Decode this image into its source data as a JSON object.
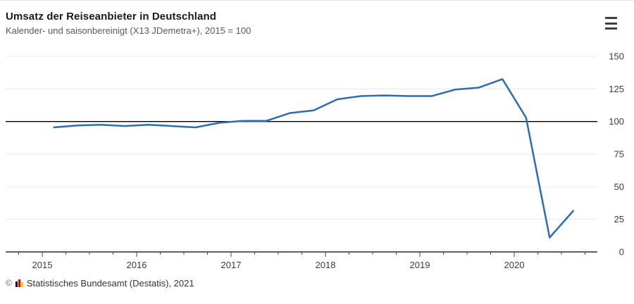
{
  "header": {
    "title": "Umsatz der Reiseanbieter in Deutschland",
    "subtitle": "Kalender- und saisonbereinigt (X13 JDemetra+), 2015 = 100",
    "menu_icon": "hamburger-icon"
  },
  "footer": {
    "copyright": "©",
    "logo_icon": "destatis-logo-icon",
    "source": "Statistisches Bundesamt (Destatis), 2021"
  },
  "chart_data": {
    "type": "line",
    "title": "Umsatz der Reiseanbieter in Deutschland",
    "subtitle": "Kalender- und saisonbereinigt (X13 JDemetra+), 2015 = 100",
    "x": [
      "2015-Q1",
      "2015-Q2",
      "2015-Q3",
      "2015-Q4",
      "2016-Q1",
      "2016-Q2",
      "2016-Q3",
      "2016-Q4",
      "2017-Q1",
      "2017-Q2",
      "2017-Q3",
      "2017-Q4",
      "2018-Q1",
      "2018-Q2",
      "2018-Q3",
      "2018-Q4",
      "2019-Q1",
      "2019-Q2",
      "2019-Q3",
      "2019-Q4",
      "2020-Q1",
      "2020-Q2",
      "2020-Q3"
    ],
    "values": [
      95.5,
      97,
      97.5,
      96.5,
      97.5,
      96.5,
      95.5,
      99,
      100.5,
      100.5,
      106.5,
      108.5,
      117,
      119.5,
      120,
      119.5,
      119.5,
      124.5,
      126,
      132.5,
      103,
      11,
      31.5
    ],
    "x_tick_labels": [
      "2015",
      "2016",
      "2017",
      "2018",
      "2019",
      "2020"
    ],
    "y_ticks": [
      0,
      25,
      50,
      75,
      100,
      125,
      150
    ],
    "ylim": [
      0,
      150
    ],
    "reference_line": 100,
    "y_axis_side": "right",
    "grid": true,
    "legend_position": "none",
    "line_color": "#2d6cb3",
    "grid_color": "#eaeaea",
    "axis_color": "#000000",
    "tick_label_color": "#3c3c3c"
  }
}
